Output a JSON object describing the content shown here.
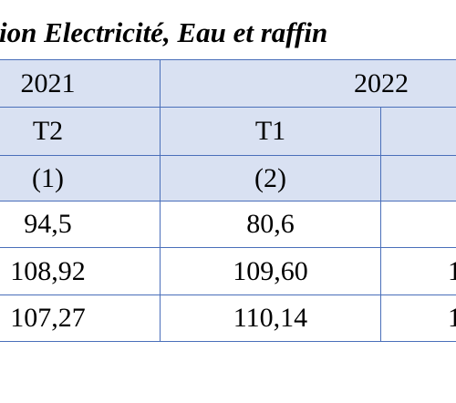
{
  "title": "ion Electricité, Eau et raffin",
  "table": {
    "rows": [
      [
        "2021",
        "2022"
      ],
      [
        "T2",
        "T1"
      ],
      [
        "(1)",
        "(2)"
      ],
      [
        "94,5",
        "80,6"
      ],
      [
        "108,92",
        "109,60",
        "1"
      ],
      [
        "107,27",
        "110,14",
        "1"
      ]
    ]
  }
}
